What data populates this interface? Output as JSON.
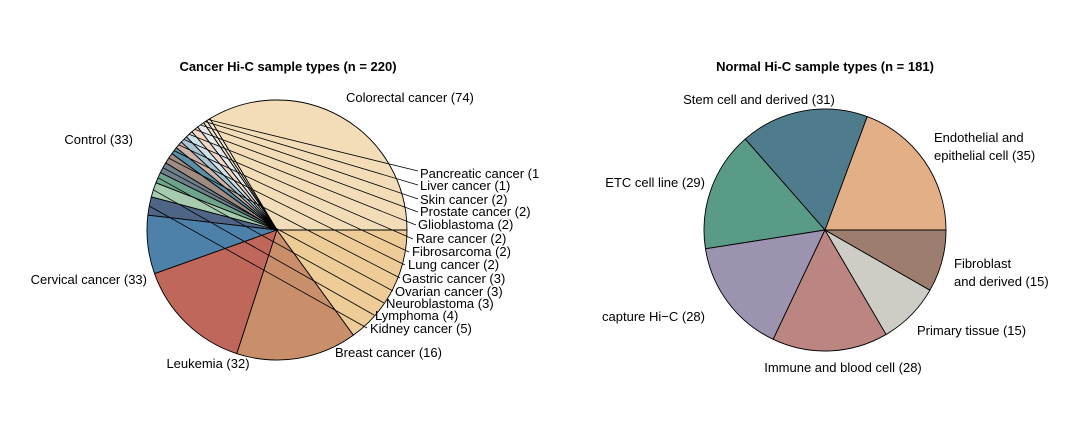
{
  "chart_data": [
    {
      "type": "pie",
      "title": "Cancer Hi-C sample types (n = 220)",
      "slices": [
        {
          "label": "Colorectal cancer (74)",
          "value": 74,
          "color": "#F2DDB8"
        },
        {
          "label": "Pancreatic cancer (1",
          "value": 1,
          "color": "#F6ECD9"
        },
        {
          "label": "Liver cancer (1)",
          "value": 1,
          "color": "#EFE3CB"
        },
        {
          "label": "Skin cancer (2)",
          "value": 2,
          "color": "#E3E8EA"
        },
        {
          "label": "Prostate cancer (2)",
          "value": 2,
          "color": "#F1D7C8"
        },
        {
          "label": "Glioblastoma (2)",
          "value": 2,
          "color": "#CFE0E6"
        },
        {
          "label": "Rare cancer (2)",
          "value": 2,
          "color": "#A9C5D3"
        },
        {
          "label": "Fibrosarcoma (2)",
          "value": 2,
          "color": "#CDB4A8"
        },
        {
          "label": "Lung cancer (2)",
          "value": 2,
          "color": "#5A8FA6"
        },
        {
          "label": "Gastric cancer (3)",
          "value": 3,
          "color": "#9E8B82"
        },
        {
          "label": "Ovarian cancer (3)",
          "value": 3,
          "color": "#6E7F8A"
        },
        {
          "label": "Neuroblastoma (3)",
          "value": 3,
          "color": "#6FA38B"
        },
        {
          "label": "Lymphoma (4)",
          "value": 4,
          "color": "#A6CBAE"
        },
        {
          "label": "Kidney cancer (5)",
          "value": 5,
          "color": "#4E6585"
        },
        {
          "label": "Breast cancer (16)",
          "value": 16,
          "color": "#4E81A9"
        },
        {
          "label": "Leukemia (32)",
          "value": 32,
          "color": "#C0675C"
        },
        {
          "label": "Cervical cancer (33)",
          "value": 33,
          "color": "#C88F6A"
        },
        {
          "label": "Control (33)",
          "value": 33,
          "color": "#EDCC98"
        }
      ]
    },
    {
      "type": "pie",
      "title": "Normal Hi-C sample types (n = 181)",
      "slices": [
        {
          "label": "Endothelial and\nepithelial cell (35)",
          "value": 35,
          "color": "#E3AF86"
        },
        {
          "label": "Stem cell and derived (31)",
          "value": 31,
          "color": "#4F7C8C"
        },
        {
          "label": "ETC cell line (29)",
          "value": 29,
          "color": "#5A9B88"
        },
        {
          "label": "capture Hi−C (28)",
          "value": 28,
          "color": "#9C93B0"
        },
        {
          "label": "Immune and blood cell (28)",
          "value": 28,
          "color": "#BB8682"
        },
        {
          "label": "Primary tissue (15)",
          "value": 15,
          "color": "#CDCDC5"
        },
        {
          "label": "Fibroblast\nand derived (15)",
          "value": 15,
          "color": "#9D7D6E"
        }
      ]
    }
  ]
}
